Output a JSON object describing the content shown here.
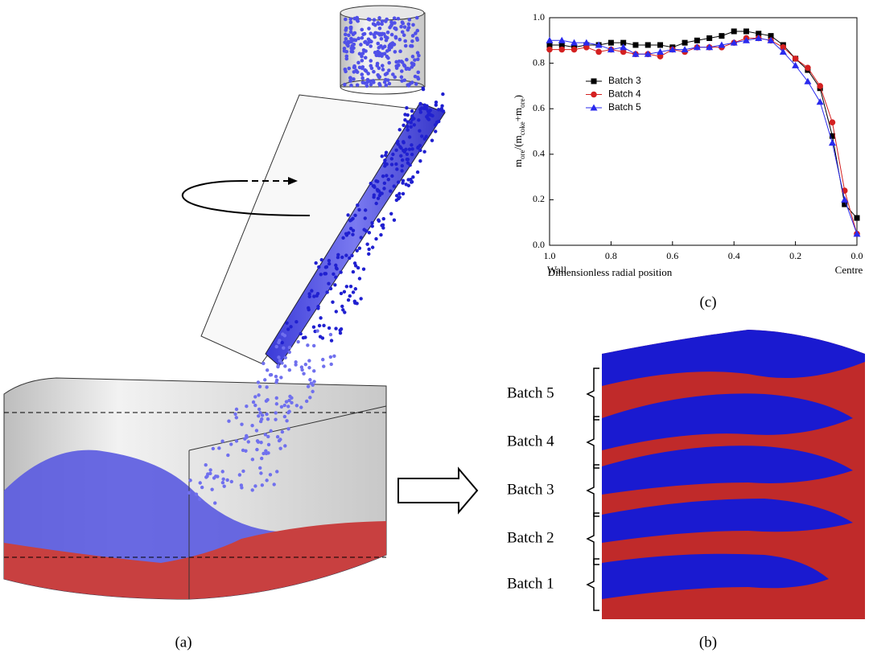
{
  "chart_data": {
    "type": "line",
    "ylabel": [
      "m",
      "ore",
      "/(m",
      "coke",
      "+m",
      "ore",
      ")"
    ],
    "xlabel": "Dimensionless radial position",
    "x_end_labels": [
      "Wall",
      "Centre"
    ],
    "panel_label": "(c)",
    "x": [
      1.0,
      0.96,
      0.92,
      0.88,
      0.84,
      0.8,
      0.76,
      0.72,
      0.68,
      0.64,
      0.6,
      0.56,
      0.52,
      0.48,
      0.44,
      0.4,
      0.36,
      0.32,
      0.28,
      0.24,
      0.2,
      0.16,
      0.12,
      0.08,
      0.04,
      0.0
    ],
    "series": [
      {
        "name": "Batch 3",
        "color": "#000000",
        "marker": "square",
        "values": [
          0.88,
          0.88,
          0.87,
          0.88,
          0.88,
          0.89,
          0.89,
          0.88,
          0.88,
          0.88,
          0.87,
          0.89,
          0.9,
          0.91,
          0.92,
          0.94,
          0.94,
          0.93,
          0.92,
          0.88,
          0.82,
          0.77,
          0.69,
          0.48,
          0.18,
          0.12
        ]
      },
      {
        "name": "Batch 4",
        "color": "#d42020",
        "marker": "circle",
        "values": [
          0.86,
          0.86,
          0.86,
          0.87,
          0.85,
          0.86,
          0.85,
          0.84,
          0.84,
          0.83,
          0.86,
          0.85,
          0.87,
          0.87,
          0.87,
          0.89,
          0.91,
          0.91,
          0.9,
          0.87,
          0.82,
          0.78,
          0.7,
          0.54,
          0.24,
          0.05
        ]
      },
      {
        "name": "Batch 5",
        "color": "#2a2aee",
        "marker": "triangle",
        "values": [
          0.9,
          0.9,
          0.89,
          0.89,
          0.88,
          0.86,
          0.87,
          0.84,
          0.84,
          0.85,
          0.86,
          0.86,
          0.87,
          0.87,
          0.88,
          0.89,
          0.9,
          0.91,
          0.9,
          0.85,
          0.79,
          0.72,
          0.63,
          0.45,
          0.2,
          0.05
        ]
      }
    ],
    "xlim": [
      1.0,
      0.0
    ],
    "xticks": [
      {
        "value": 1.0,
        "label": "1.0"
      },
      0.8,
      0.6,
      0.4,
      0.2,
      {
        "value": 0.0,
        "label": "0.0"
      }
    ],
    "ylim": [
      0.0,
      1.0
    ],
    "yticks": [
      {
        "value": 0.0,
        "label": "0.0"
      },
      0.2,
      0.4,
      0.6,
      0.8,
      {
        "value": 1.0,
        "label": "1.0"
      }
    ],
    "legend": "upper left"
  },
  "panels": {
    "a": {
      "label": "(a)"
    },
    "b": {
      "label": "(b)",
      "batches": [
        "Batch 5",
        "Batch 4",
        "Batch 3",
        "Batch 2",
        "Batch 1"
      ]
    }
  }
}
